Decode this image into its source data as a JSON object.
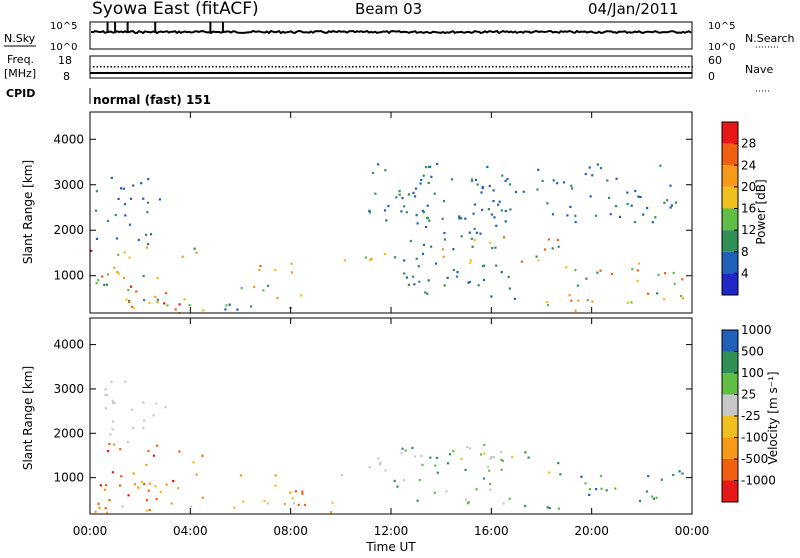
{
  "header": {
    "station": "Syowa East (fitACF)",
    "beam": "Beam 03",
    "date": "04/Jan/2011"
  },
  "meta_panel": {
    "nsky_label": "N.Sky",
    "nsky_ticks": [
      "10^5",
      "10^0"
    ],
    "nsearch_label": "N.Search",
    "nsearch_ticks": [
      "10^5",
      "10^0"
    ],
    "freq_label": "Freq.",
    "freq_unit": "[MHz]",
    "freq_ticks": [
      "18",
      "8"
    ],
    "nave_label": "Nave",
    "nave_ticks": [
      "60",
      "0"
    ],
    "cpid_label": "CPID",
    "cpid_value": "normal (fast) 151"
  },
  "colors": {
    "power_scale": [
      "#2029c8",
      "#2060b8",
      "#2f8f55",
      "#5fbf45",
      "#f0c020",
      "#f79a1a",
      "#f06010",
      "#e81818"
    ],
    "velocity_scale": [
      "#e81818",
      "#f06010",
      "#f79a1a",
      "#f0c020",
      "#c8c8c8",
      "#5fbf45",
      "#2f8f55",
      "#2060b8"
    ],
    "gray": "#c4c4c4"
  },
  "chart_data": [
    {
      "type": "heatmap",
      "name": "power",
      "ylabel": "Slant Range [km]",
      "xlabel": "",
      "y_ticks": [
        "1000",
        "2000",
        "3000",
        "4000"
      ],
      "ylim": [
        180,
        4600
      ],
      "xlim": [
        0,
        24
      ],
      "colorbar_label": "Power [dB]",
      "colorbar_ticks": [
        "4",
        "8",
        "12",
        "16",
        "20",
        "24",
        "28"
      ],
      "colorbar_range": [
        0,
        32
      ],
      "regions": [
        {
          "t": [
            0.0,
            4.3
          ],
          "r": [
            350,
            1800
          ],
          "v": [
            8,
            30
          ]
        },
        {
          "t": [
            0.2,
            2.8
          ],
          "r": [
            1800,
            3250
          ],
          "v": [
            4,
            12
          ]
        },
        {
          "t": [
            1.0,
            2.2
          ],
          "r": [
            2700,
            3200
          ],
          "v": [
            4,
            8
          ]
        },
        {
          "t": [
            0.0,
            5.0
          ],
          "r": [
            200,
            480
          ],
          "v": [
            16,
            30
          ]
        },
        {
          "t": [
            6.0,
            8.4
          ],
          "r": [
            500,
            1300
          ],
          "v": [
            8,
            26
          ]
        },
        {
          "t": [
            5.0,
            10.0
          ],
          "r": [
            250,
            450
          ],
          "v": [
            4,
            16
          ]
        },
        {
          "t": [
            10.0,
            11.8
          ],
          "r": [
            1300,
            1800
          ],
          "v": [
            8,
            24
          ]
        },
        {
          "t": [
            12.0,
            17.0
          ],
          "r": [
            500,
            3200
          ],
          "v": [
            4,
            12
          ]
        },
        {
          "t": [
            14.0,
            19.0
          ],
          "r": [
            1200,
            1900
          ],
          "v": [
            8,
            28
          ]
        },
        {
          "t": [
            19.0,
            23.8
          ],
          "r": [
            450,
            1300
          ],
          "v": [
            8,
            28
          ]
        },
        {
          "t": [
            17.0,
            22.0
          ],
          "r": [
            250,
            500
          ],
          "v": [
            12,
            24
          ]
        },
        {
          "t": [
            11.0,
            23.5
          ],
          "r": [
            2200,
            3500
          ],
          "v": [
            4,
            10
          ]
        }
      ]
    },
    {
      "type": "heatmap",
      "name": "velocity",
      "ylabel": "Slant Range [km]",
      "xlabel": "Time UT",
      "x_ticks": [
        "00:00",
        "04:00",
        "08:00",
        "12:00",
        "16:00",
        "20:00",
        "00:00"
      ],
      "y_ticks": [
        "1000",
        "2000",
        "3000",
        "4000"
      ],
      "ylim": [
        180,
        4600
      ],
      "xlim": [
        0,
        24
      ],
      "colorbar_label": "Velocity [m s⁻¹]",
      "colorbar_ticks": [
        "-1000",
        "-500",
        "-100",
        "-25",
        "25",
        "100",
        "500",
        "1000"
      ],
      "regions": [
        {
          "t": [
            0.0,
            4.5
          ],
          "r": [
            350,
            1800
          ],
          "c": [
            0,
            3
          ]
        },
        {
          "t": [
            0.5,
            3.0
          ],
          "r": [
            1800,
            3300
          ],
          "c": [
            4,
            4
          ]
        },
        {
          "t": [
            5.8,
            8.5
          ],
          "r": [
            450,
            1100
          ],
          "c": [
            1,
            3
          ]
        },
        {
          "t": [
            10.0,
            12.0
          ],
          "r": [
            1000,
            1500
          ],
          "c": [
            4,
            4
          ]
        },
        {
          "t": [
            12.0,
            17.0
          ],
          "r": [
            400,
            1800
          ],
          "c": [
            4,
            6
          ]
        },
        {
          "t": [
            14.5,
            19.0
          ],
          "r": [
            1100,
            1600
          ],
          "c": [
            3,
            6
          ]
        },
        {
          "t": [
            19.5,
            23.8
          ],
          "r": [
            400,
            1200
          ],
          "c": [
            5,
            7
          ]
        },
        {
          "t": [
            17.0,
            21.0
          ],
          "r": [
            250,
            450
          ],
          "c": [
            5,
            6
          ]
        },
        {
          "t": [
            0.0,
            10.0
          ],
          "r": [
            200,
            500
          ],
          "c": [
            1,
            4
          ]
        }
      ]
    }
  ]
}
